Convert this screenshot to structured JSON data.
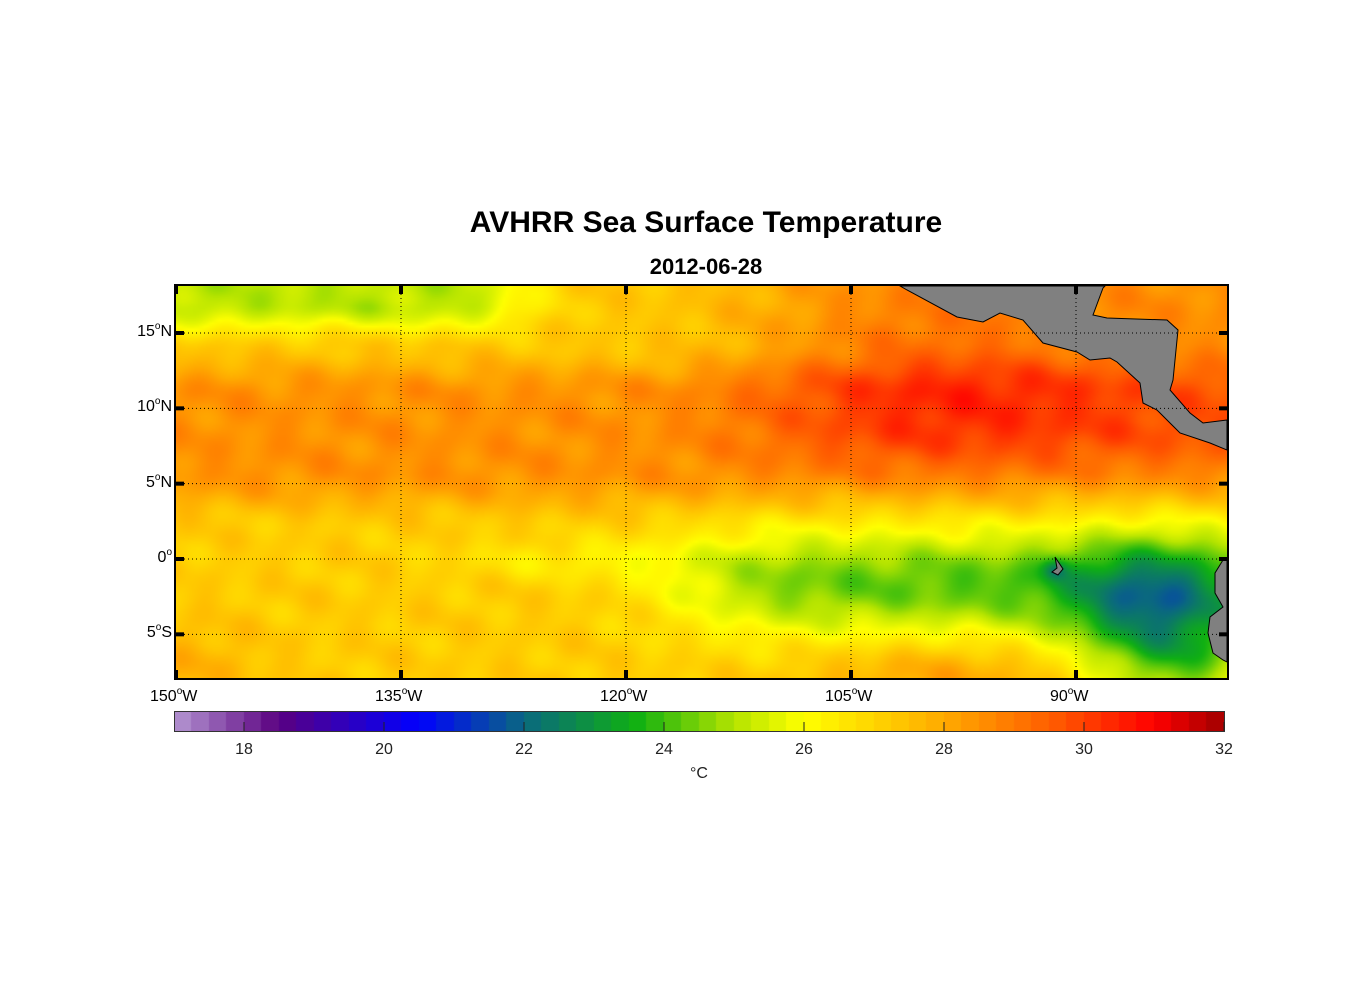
{
  "title": "AVHRR Sea Surface Temperature",
  "subtitle": "2012-06-28",
  "chart_data": {
    "type": "heatmap",
    "title": "AVHRR Sea Surface Temperature",
    "subtitle": "2012-06-28",
    "variable": "Sea surface temperature",
    "lon_range": [
      -150,
      -80
    ],
    "lat_range": [
      -8,
      18
    ],
    "x_ticks": [
      {
        "value": -150,
        "deg": "150",
        "hemi": "W"
      },
      {
        "value": -135,
        "deg": "135",
        "hemi": "W"
      },
      {
        "value": -120,
        "deg": "120",
        "hemi": "W"
      },
      {
        "value": -105,
        "deg": "105",
        "hemi": "W"
      },
      {
        "value": -90,
        "deg": "90",
        "hemi": "W"
      }
    ],
    "y_ticks": [
      {
        "value": 15,
        "deg": "15",
        "hemi": "N"
      },
      {
        "value": 10,
        "deg": "10",
        "hemi": "N"
      },
      {
        "value": 5,
        "deg": "5",
        "hemi": "N"
      },
      {
        "value": 0,
        "deg": "0",
        "hemi": ""
      },
      {
        "value": -5,
        "deg": "5",
        "hemi": "S"
      }
    ],
    "grid": true,
    "colorbar": {
      "range": [
        17,
        32
      ],
      "step": 0.25,
      "ticks": [
        "18",
        "20",
        "22",
        "24",
        "26",
        "28",
        "30",
        "32"
      ],
      "unit": "°C",
      "placement": "bottom"
    },
    "colormap": [
      {
        "t": 17,
        "c": "#b596d2"
      },
      {
        "t": 18.5,
        "c": "#5a0080"
      },
      {
        "t": 20.5,
        "c": "#0000ff"
      },
      {
        "t": 22,
        "c": "#0a6880"
      },
      {
        "t": 23.6,
        "c": "#0fb012"
      },
      {
        "t": 25,
        "c": "#b4e400"
      },
      {
        "t": 26,
        "c": "#ffff00"
      },
      {
        "t": 28,
        "c": "#ffaa00"
      },
      {
        "t": 29.6,
        "c": "#ff5a00"
      },
      {
        "t": 31,
        "c": "#ff0000"
      },
      {
        "t": 32,
        "c": "#a00000"
      }
    ],
    "field_description_regions": [
      {
        "region": "NW corner (>15N, <130W)",
        "approx_temp": 24
      },
      {
        "region": "5-13N band",
        "approx_temp": 28.5
      },
      {
        "region": "NE off Mexico/Central America",
        "approx_temp": 30
      },
      {
        "region": "Equatorial cold tongue east of 110W",
        "approx_temp": 24.5
      },
      {
        "region": "Off Ecuador/Peru",
        "approx_temp": 20.5
      },
      {
        "region": "South of equator west",
        "approx_temp": 27
      }
    ],
    "land_color": "#808080"
  }
}
